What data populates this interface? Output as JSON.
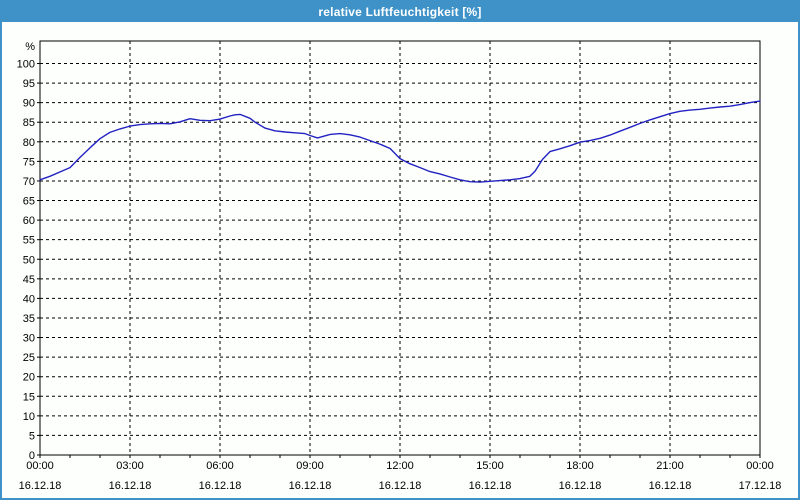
{
  "window": {
    "title": "relative Luftfeuchtigkeit [%]",
    "titlebar_color": "#3E92C8",
    "border_color": "#3E92C8",
    "background_color": "#FCFFFC"
  },
  "chart_data": {
    "type": "line",
    "title": "relative Luftfeuchtigkeit [%]",
    "ylabel": "%",
    "xlabel": "",
    "ylim": [
      0,
      100
    ],
    "ytick_step": 5,
    "grid": true,
    "legend": "none",
    "line_color": "#2222C2",
    "grid_color": "#000000",
    "x_axis_unit": "hours",
    "x_range_hours": [
      0,
      24
    ],
    "x_major_tick_hours": 3,
    "x_minor_tick_hours": 1,
    "x_ticks": [
      {
        "hour": 0,
        "time": "00:00",
        "date": "16.12.18"
      },
      {
        "hour": 3,
        "time": "03:00",
        "date": "16.12.18"
      },
      {
        "hour": 6,
        "time": "06:00",
        "date": "16.12.18"
      },
      {
        "hour": 9,
        "time": "09:00",
        "date": "16.12.18"
      },
      {
        "hour": 12,
        "time": "12:00",
        "date": "16.12.18"
      },
      {
        "hour": 15,
        "time": "15:00",
        "date": "16.12.18"
      },
      {
        "hour": 18,
        "time": "18:00",
        "date": "16.12.18"
      },
      {
        "hour": 21,
        "time": "21:00",
        "date": "16.12.18"
      },
      {
        "hour": 24,
        "time": "00:00",
        "date": "17.12.18"
      }
    ],
    "series": [
      {
        "name": "relative Luftfeuchtigkeit",
        "x_hours": [
          0,
          0.33,
          0.67,
          1,
          1.33,
          1.67,
          2,
          2.33,
          2.67,
          3,
          3.33,
          3.67,
          4,
          4.33,
          4.67,
          5,
          5.33,
          5.67,
          6,
          6.33,
          6.5,
          6.67,
          7,
          7.17,
          7.5,
          7.83,
          8.17,
          8.5,
          8.83,
          9,
          9.25,
          9.67,
          10,
          10.33,
          10.67,
          11,
          11.33,
          11.67,
          12,
          12.33,
          12.67,
          13,
          13.33,
          13.67,
          14,
          14.33,
          14.67,
          15,
          15.33,
          15.67,
          16,
          16.33,
          16.5,
          16.75,
          17,
          17.33,
          17.67,
          18,
          18.33,
          18.67,
          19,
          19.33,
          19.67,
          20,
          20.33,
          20.67,
          21,
          21.33,
          21.67,
          22,
          22.33,
          22.67,
          23,
          23.33,
          23.67,
          24
        ],
        "values": [
          70.3,
          71.2,
          72.3,
          73.4,
          76.0,
          78.5,
          80.8,
          82.4,
          83.3,
          84.0,
          84.4,
          84.6,
          84.7,
          84.6,
          85.1,
          85.9,
          85.5,
          85.4,
          85.8,
          86.6,
          86.9,
          87.0,
          86.0,
          85.0,
          83.5,
          82.8,
          82.5,
          82.3,
          82.1,
          81.6,
          81.0,
          81.9,
          82.1,
          81.8,
          81.2,
          80.3,
          79.4,
          78.3,
          75.7,
          74.4,
          73.4,
          72.4,
          71.8,
          71.0,
          70.3,
          69.8,
          69.7,
          69.9,
          70.1,
          70.3,
          70.6,
          71.2,
          72.5,
          75.5,
          77.5,
          78.2,
          79.0,
          79.9,
          80.3,
          80.9,
          81.7,
          82.7,
          83.7,
          84.7,
          85.6,
          86.4,
          87.2,
          87.8,
          88.1,
          88.3,
          88.6,
          88.9,
          89.1,
          89.5,
          90.0,
          90.4
        ]
      }
    ]
  }
}
